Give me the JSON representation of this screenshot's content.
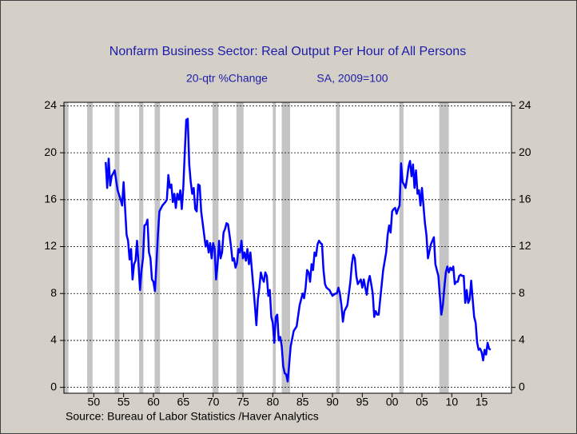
{
  "chart_data": {
    "type": "line",
    "title": "Nonfarm Business Sector: Real Output Per Hour of All Persons",
    "subtitle": [
      "20-qtr %Change",
      "SA, 2009=100"
    ],
    "source": "Source:  Bureau of Labor Statistics /Haver Analytics",
    "xlim": [
      1945,
      2020
    ],
    "ylim": [
      -0.5,
      24.3
    ],
    "yticks": [
      0,
      4,
      8,
      12,
      16,
      20,
      24
    ],
    "xticks": [
      {
        "value": 1950,
        "label": "50"
      },
      {
        "value": 1955,
        "label": "55"
      },
      {
        "value": 1960,
        "label": "60"
      },
      {
        "value": 1965,
        "label": "65"
      },
      {
        "value": 1970,
        "label": "70"
      },
      {
        "value": 1975,
        "label": "75"
      },
      {
        "value": 1980,
        "label": "80"
      },
      {
        "value": 1985,
        "label": "85"
      },
      {
        "value": 1990,
        "label": "90"
      },
      {
        "value": 1995,
        "label": "95"
      },
      {
        "value": 2000,
        "label": "00"
      },
      {
        "value": 2005,
        "label": "05"
      },
      {
        "value": 2010,
        "label": "10"
      },
      {
        "value": 2015,
        "label": "15"
      }
    ],
    "grid": true,
    "recessions": [
      [
        1945,
        1945.75
      ],
      [
        1948.9,
        1949.8
      ],
      [
        1953.5,
        1954.3
      ],
      [
        1957.6,
        1958.3
      ],
      [
        1960.2,
        1961.1
      ],
      [
        1969.9,
        1970.9
      ],
      [
        1973.9,
        1975.1
      ],
      [
        1980,
        1980.5
      ],
      [
        1981.5,
        1982.9
      ],
      [
        1990.6,
        1991.2
      ],
      [
        2001.2,
        2001.9
      ],
      [
        2007.9,
        2009.5
      ]
    ],
    "recession_color": "#c4c4c4",
    "series": [
      {
        "color": "#0000ff",
        "x": [
          1952.0,
          1952.25,
          1952.5,
          1952.75,
          1953.0,
          1953.5,
          1954.0,
          1954.5,
          1954.75,
          1955.0,
          1955.5,
          1955.75,
          1956.0,
          1956.25,
          1956.5,
          1956.75,
          1957.0,
          1957.25,
          1957.5,
          1957.75,
          1958.0,
          1958.25,
          1958.5,
          1958.75,
          1959.0,
          1959.25,
          1959.5,
          1959.75,
          1960.0,
          1960.25,
          1960.5,
          1960.75,
          1961.0,
          1961.5,
          1962.0,
          1962.25,
          1962.5,
          1962.75,
          1963.0,
          1963.25,
          1963.5,
          1963.75,
          1964.0,
          1964.25,
          1964.5,
          1964.75,
          1965.0,
          1965.25,
          1965.5,
          1965.75,
          1966.0,
          1966.25,
          1966.5,
          1966.75,
          1967.0,
          1967.25,
          1967.5,
          1967.75,
          1968.0,
          1968.5,
          1968.75,
          1969.0,
          1969.25,
          1969.5,
          1969.75,
          1970.0,
          1970.25,
          1970.5,
          1970.75,
          1971.0,
          1971.25,
          1971.5,
          1971.75,
          1972.0,
          1972.25,
          1972.5,
          1972.75,
          1973.0,
          1973.25,
          1973.5,
          1973.75,
          1974.0,
          1974.25,
          1974.5,
          1974.75,
          1975.0,
          1975.25,
          1975.5,
          1975.75,
          1976.0,
          1976.25,
          1976.5,
          1976.75,
          1977.0,
          1977.25,
          1977.5,
          1977.75,
          1978.0,
          1978.25,
          1978.5,
          1978.75,
          1979.0,
          1979.25,
          1979.5,
          1979.75,
          1980.0,
          1980.25,
          1980.5,
          1980.75,
          1981.0,
          1981.25,
          1981.5,
          1981.75,
          1982.0,
          1982.25,
          1982.5,
          1982.75,
          1983.0,
          1983.5,
          1984.0,
          1984.5,
          1985.0,
          1985.25,
          1985.5,
          1985.75,
          1986.0,
          1986.25,
          1986.5,
          1986.75,
          1987.0,
          1987.25,
          1987.5,
          1987.75,
          1988.0,
          1988.25,
          1988.5,
          1988.75,
          1989.0,
          1989.5,
          1990.0,
          1990.5,
          1990.75,
          1991.0,
          1991.25,
          1991.5,
          1991.75,
          1992.0,
          1992.5,
          1993.0,
          1993.25,
          1993.5,
          1993.75,
          1994.0,
          1994.25,
          1994.5,
          1994.75,
          1995.0,
          1995.25,
          1995.5,
          1995.75,
          1996.0,
          1996.25,
          1996.5,
          1996.75,
          1997.0,
          1997.25,
          1997.5,
          1997.75,
          1998.0,
          1998.5,
          1999.0,
          1999.25,
          1999.5,
          1999.75,
          2000.0,
          2000.25,
          2000.5,
          2000.75,
          2001.0,
          2001.25,
          2001.5,
          2001.75,
          2002.0,
          2002.25,
          2002.5,
          2002.75,
          2003.0,
          2003.25,
          2003.5,
          2003.75,
          2004.0,
          2004.25,
          2004.5,
          2004.75,
          2005.0,
          2005.25,
          2005.5,
          2005.75,
          2006.0,
          2006.5,
          2007.0,
          2007.25,
          2007.5,
          2007.75,
          2008.0,
          2008.25,
          2008.5,
          2008.75,
          2009.0,
          2009.25,
          2009.5,
          2009.75,
          2010.0,
          2010.25,
          2010.5,
          2010.75,
          2011.0,
          2011.25,
          2011.5,
          2011.75,
          2012.0,
          2012.25,
          2012.5,
          2012.75,
          2013.0,
          2013.25,
          2013.5,
          2013.75,
          2014.0,
          2014.25,
          2014.5,
          2014.75,
          2015.0,
          2015.25,
          2015.5,
          2015.75,
          2016.0,
          2016.25,
          2016.5
        ],
        "values": [
          19.2,
          17.0,
          19.5,
          17.2,
          18.0,
          18.5,
          16.8,
          16.0,
          15.5,
          17.5,
          13.0,
          12.5,
          10.9,
          11.8,
          9.2,
          10.5,
          10.8,
          12.5,
          10.5,
          8.3,
          10.0,
          11.0,
          13.8,
          13.9,
          14.3,
          11.5,
          11.0,
          9.2,
          9.0,
          8.2,
          10.5,
          13.0,
          15.0,
          15.5,
          15.8,
          16.0,
          18.1,
          17.0,
          17.3,
          15.8,
          16.5,
          15.3,
          16.5,
          16.0,
          16.8,
          15.2,
          17.0,
          20.0,
          22.8,
          22.9,
          19.0,
          17.5,
          16.5,
          17.0,
          15.2,
          15.0,
          17.3,
          17.2,
          15.0,
          13.0,
          12.0,
          12.5,
          11.5,
          12.3,
          11.0,
          12.3,
          11.8,
          9.2,
          10.5,
          12.5,
          11.0,
          11.5,
          13.2,
          13.5,
          14.0,
          13.9,
          13.0,
          12.0,
          10.8,
          11.0,
          10.2,
          10.6,
          11.8,
          11.5,
          12.5,
          11.0,
          11.5,
          10.8,
          11.8,
          10.5,
          11.5,
          10.0,
          8.5,
          7.0,
          5.3,
          7.5,
          8.5,
          9.8,
          9.3,
          9.0,
          9.8,
          9.5,
          7.8,
          8.3,
          6.0,
          5.5,
          3.8,
          6.0,
          6.2,
          4.0,
          4.3,
          3.5,
          1.8,
          1.2,
          1.1,
          0.5,
          2.0,
          3.5,
          4.8,
          5.2,
          7.0,
          8.0,
          7.6,
          8.5,
          10.0,
          9.8,
          9.0,
          10.5,
          10.0,
          11.5,
          11.2,
          12.2,
          12.5,
          12.3,
          12.2,
          10.0,
          8.8,
          8.5,
          8.3,
          7.8,
          8.0,
          8.0,
          8.5,
          8.0,
          7.0,
          5.6,
          6.5,
          7.0,
          9.0,
          10.5,
          11.3,
          11.0,
          9.5,
          8.8,
          9.0,
          9.2,
          8.5,
          9.2,
          8.5,
          7.9,
          9.0,
          9.5,
          8.8,
          8.0,
          6.0,
          6.5,
          6.2,
          6.2,
          7.5,
          10.0,
          11.5,
          13.0,
          13.8,
          13.2,
          15.0,
          15.2,
          15.3,
          14.8,
          15.2,
          15.5,
          19.1,
          17.5,
          17.3,
          17.0,
          17.8,
          18.8,
          19.3,
          18.0,
          19.0,
          17.0,
          18.5,
          16.5,
          16.8,
          15.5,
          17.0,
          15.5,
          14.0,
          13.0,
          11.0,
          12.2,
          12.8,
          10.5,
          10.0,
          9.5,
          7.8,
          6.2,
          7.0,
          8.5,
          9.8,
          10.3,
          9.8,
          10.2,
          10.0,
          10.3,
          8.8,
          9.0,
          9.0,
          9.5,
          9.6,
          9.5,
          9.5,
          7.2,
          8.3,
          7.2,
          7.5,
          9.1,
          7.5,
          6.0,
          5.5,
          3.8,
          3.2,
          3.3,
          3.0,
          2.3,
          3.2,
          2.8,
          3.8,
          3.3,
          3.2
        ]
      }
    ]
  }
}
